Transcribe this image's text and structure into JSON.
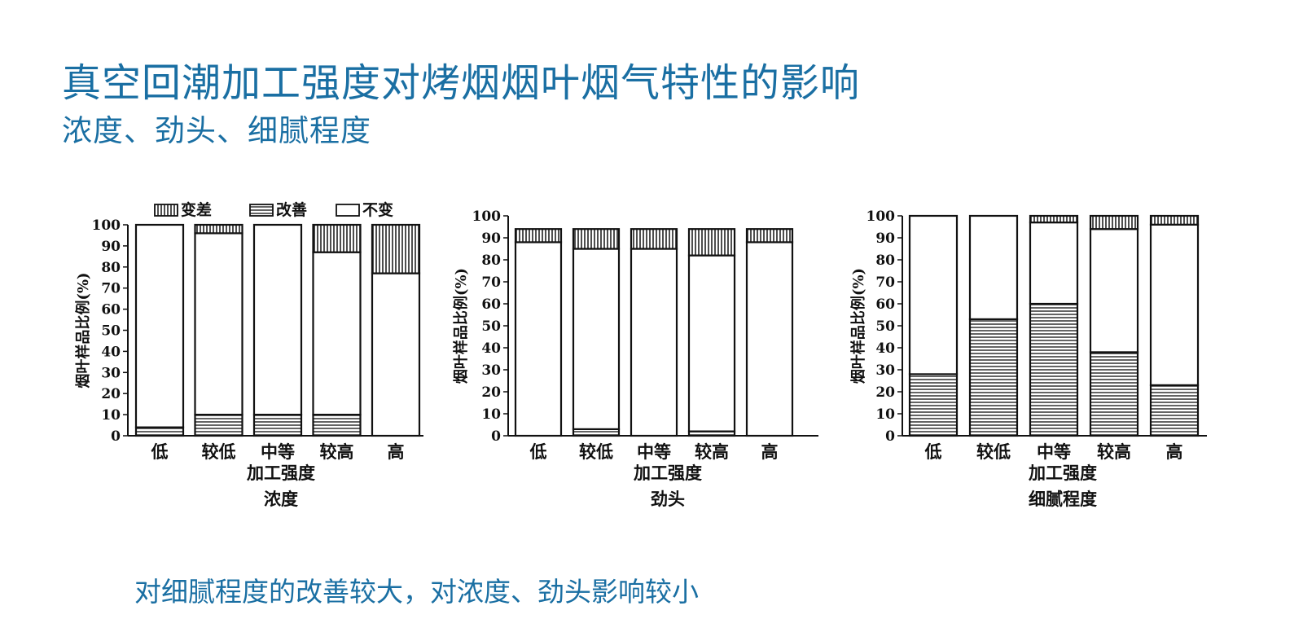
{
  "slide": {
    "title": "真空回潮加工强度对烤烟烟叶烟气特性的影响",
    "subtitle": "浓度、劲头、细腻程度",
    "conclusion": "对细腻程度的改善较大，对浓度、劲头影响较小"
  },
  "legend": [
    "变差",
    "改善",
    "不变"
  ],
  "chart_data": [
    {
      "type": "bar",
      "stacked": true,
      "title": "浓度",
      "xlabel": "加工强度",
      "ylabel": "烟叶样品比例(%)",
      "categories": [
        "低",
        "较低",
        "中等",
        "较高",
        "高"
      ],
      "ylim": [
        0,
        100
      ],
      "yticks": [
        0,
        10,
        20,
        30,
        40,
        50,
        60,
        70,
        80,
        90,
        100
      ],
      "legend_position": "top",
      "series": [
        {
          "name": "改善",
          "values": [
            4,
            10,
            10,
            10,
            0
          ]
        },
        {
          "name": "不变",
          "values": [
            96,
            86,
            90,
            77,
            77
          ]
        },
        {
          "name": "变差",
          "values": [
            0,
            4,
            0,
            13,
            23
          ]
        }
      ]
    },
    {
      "type": "bar",
      "stacked": true,
      "title": "劲头",
      "xlabel": "加工强度",
      "ylabel": "烟叶样品比例(%)",
      "categories": [
        "低",
        "较低",
        "中等",
        "较高",
        "高"
      ],
      "ylim": [
        0,
        100
      ],
      "yticks": [
        0,
        10,
        20,
        30,
        40,
        50,
        60,
        70,
        80,
        90,
        100
      ],
      "series": [
        {
          "name": "改善",
          "values": [
            0,
            3,
            0,
            2,
            0
          ]
        },
        {
          "name": "不变",
          "values": [
            88,
            82,
            85,
            80,
            88
          ]
        },
        {
          "name": "变差",
          "values": [
            6,
            9,
            9,
            12,
            6
          ]
        }
      ]
    },
    {
      "type": "bar",
      "stacked": true,
      "title": "细腻程度",
      "xlabel": "加工强度",
      "ylabel": "烟叶样品比例(%)",
      "categories": [
        "低",
        "较低",
        "中等",
        "较高",
        "高"
      ],
      "ylim": [
        0,
        100
      ],
      "yticks": [
        0,
        10,
        20,
        30,
        40,
        50,
        60,
        70,
        80,
        90,
        100
      ],
      "series": [
        {
          "name": "改善",
          "values": [
            28,
            53,
            60,
            38,
            23
          ]
        },
        {
          "name": "不变",
          "values": [
            72,
            47,
            37,
            56,
            73
          ]
        },
        {
          "name": "变差",
          "values": [
            0,
            0,
            3,
            6,
            4
          ]
        }
      ]
    }
  ]
}
